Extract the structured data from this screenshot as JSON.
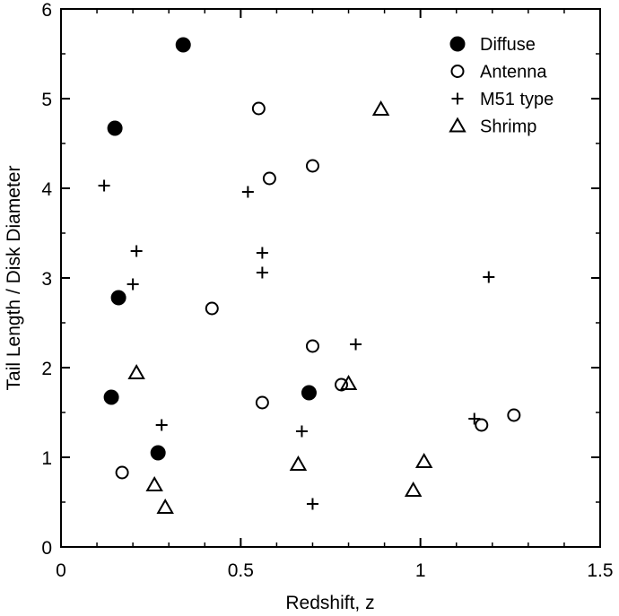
{
  "chart_data": {
    "type": "scatter",
    "title": "",
    "xlabel": "Redshift, z",
    "ylabel": "Tail Length / Disk Diameter",
    "xlim": [
      0,
      1.5
    ],
    "ylim": [
      0,
      6
    ],
    "x_ticks": [
      "0",
      "0.5",
      "1",
      "1.5"
    ],
    "y_ticks": [
      "0",
      "1",
      "2",
      "3",
      "4",
      "5",
      "6"
    ],
    "x_tick_values": [
      0,
      0.5,
      1,
      1.5
    ],
    "y_tick_values": [
      0,
      1,
      2,
      3,
      4,
      5,
      6
    ],
    "x_minor_step": 0.1,
    "y_minor_step": 0.5,
    "grid": false,
    "legend_position": "top-right",
    "series": [
      {
        "name": "Diffuse",
        "marker": "filled-circle",
        "points": [
          {
            "x": 0.34,
            "y": 5.6
          },
          {
            "x": 0.15,
            "y": 4.67
          },
          {
            "x": 0.16,
            "y": 2.78
          },
          {
            "x": 0.14,
            "y": 1.67
          },
          {
            "x": 0.27,
            "y": 1.05
          },
          {
            "x": 0.69,
            "y": 1.72
          }
        ]
      },
      {
        "name": "Antenna",
        "marker": "open-circle",
        "points": [
          {
            "x": 0.55,
            "y": 4.89
          },
          {
            "x": 0.58,
            "y": 4.11
          },
          {
            "x": 0.7,
            "y": 4.25
          },
          {
            "x": 0.42,
            "y": 2.66
          },
          {
            "x": 0.7,
            "y": 2.24
          },
          {
            "x": 0.78,
            "y": 1.81
          },
          {
            "x": 0.56,
            "y": 1.61
          },
          {
            "x": 0.17,
            "y": 0.83
          },
          {
            "x": 1.17,
            "y": 1.36
          },
          {
            "x": 1.26,
            "y": 1.47
          }
        ]
      },
      {
        "name": "M51 type",
        "marker": "plus",
        "points": [
          {
            "x": 0.12,
            "y": 4.03
          },
          {
            "x": 0.52,
            "y": 3.96
          },
          {
            "x": 0.21,
            "y": 3.3
          },
          {
            "x": 0.56,
            "y": 3.28
          },
          {
            "x": 0.56,
            "y": 3.06
          },
          {
            "x": 0.2,
            "y": 2.93
          },
          {
            "x": 1.19,
            "y": 3.01
          },
          {
            "x": 0.82,
            "y": 2.26
          },
          {
            "x": 0.28,
            "y": 1.36
          },
          {
            "x": 0.67,
            "y": 1.29
          },
          {
            "x": 1.15,
            "y": 1.43
          },
          {
            "x": 0.7,
            "y": 0.48
          }
        ]
      },
      {
        "name": "Shrimp",
        "marker": "open-triangle",
        "points": [
          {
            "x": 0.89,
            "y": 4.88
          },
          {
            "x": 0.21,
            "y": 1.94
          },
          {
            "x": 0.8,
            "y": 1.82
          },
          {
            "x": 0.66,
            "y": 0.92
          },
          {
            "x": 1.01,
            "y": 0.95
          },
          {
            "x": 0.26,
            "y": 0.69
          },
          {
            "x": 0.98,
            "y": 0.63
          },
          {
            "x": 0.29,
            "y": 0.44
          }
        ]
      }
    ]
  }
}
